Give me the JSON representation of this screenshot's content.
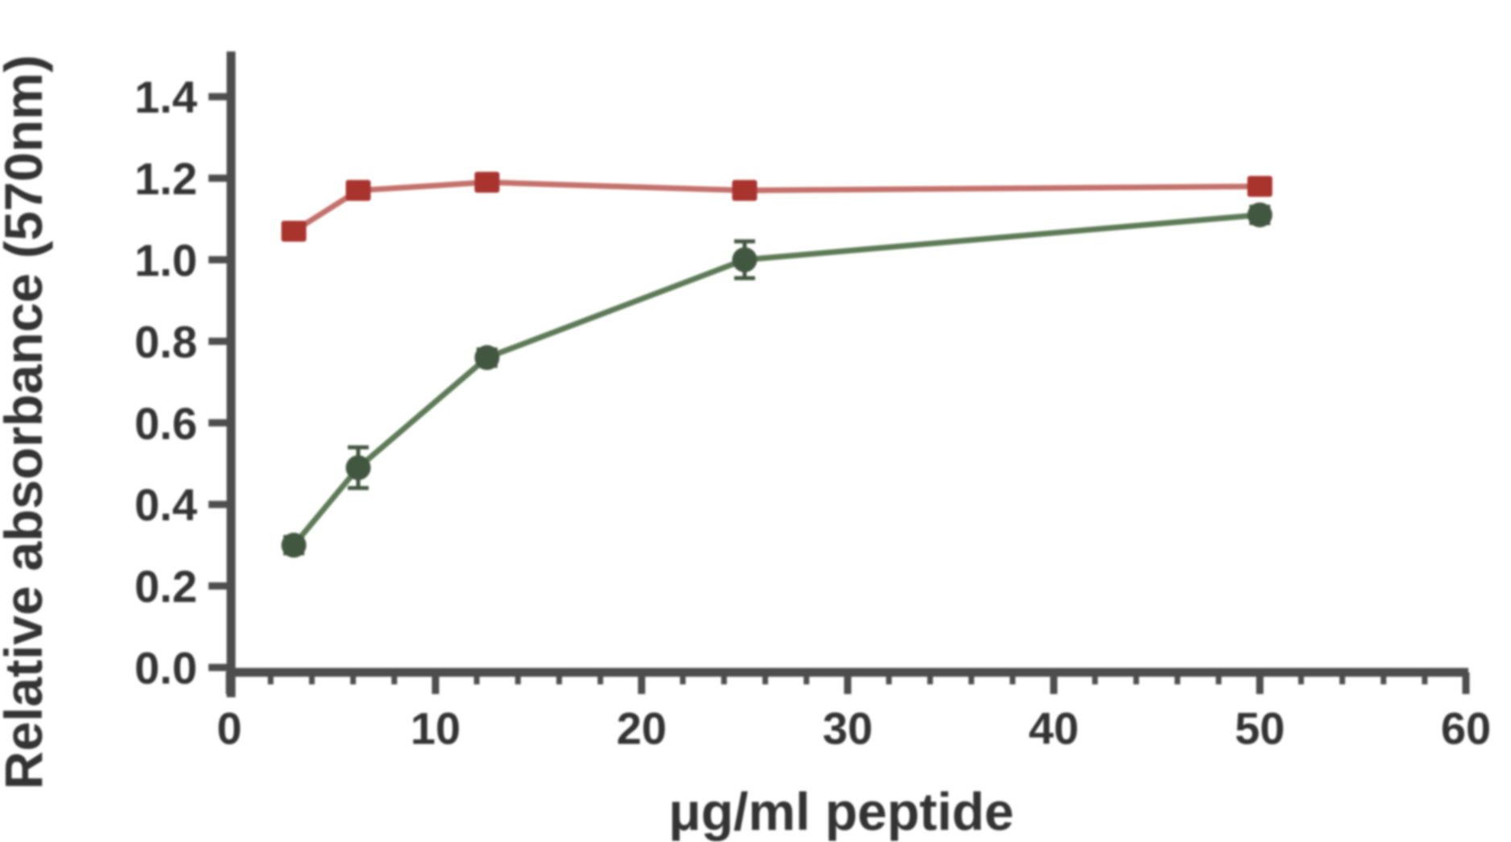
{
  "figure": {
    "background": "#ffffff",
    "axis_color": "#4d4d4d",
    "text_color": "#333333"
  },
  "chart_data": {
    "type": "line",
    "title": "",
    "xlabel": "μg/ml peptide",
    "ylabel": "Relative absorbance (570nm)",
    "xlim": [
      0,
      60
    ],
    "ylim": [
      0.0,
      1.4
    ],
    "grid": false,
    "legend_position": "none",
    "x_major_ticks": [
      0,
      10,
      20,
      30,
      40,
      50,
      60
    ],
    "x_minor_tick_step": 2,
    "y_tick_labels": [
      "0.0",
      "0.2",
      "0.4",
      "0.6",
      "0.8",
      "1.0",
      "1.2",
      "1.4"
    ],
    "series": [
      {
        "name": "red-squares",
        "marker": "square",
        "marker_color": "#a9342e",
        "line_color": "#c4706b",
        "x": [
          3.125,
          6.25,
          12.5,
          25,
          50
        ],
        "y": [
          1.07,
          1.17,
          1.19,
          1.17,
          1.18
        ],
        "yerr": [
          0.015,
          0.015,
          0.015,
          0.015,
          0.015
        ]
      },
      {
        "name": "green-circles",
        "marker": "circle",
        "marker_color": "#42573f",
        "line_color": "#5c7a55",
        "x": [
          3.125,
          6.25,
          12.5,
          25,
          50
        ],
        "y": [
          0.3,
          0.49,
          0.76,
          1.0,
          1.11
        ],
        "yerr": [
          0.02,
          0.05,
          0.02,
          0.045,
          0.02
        ]
      }
    ]
  }
}
